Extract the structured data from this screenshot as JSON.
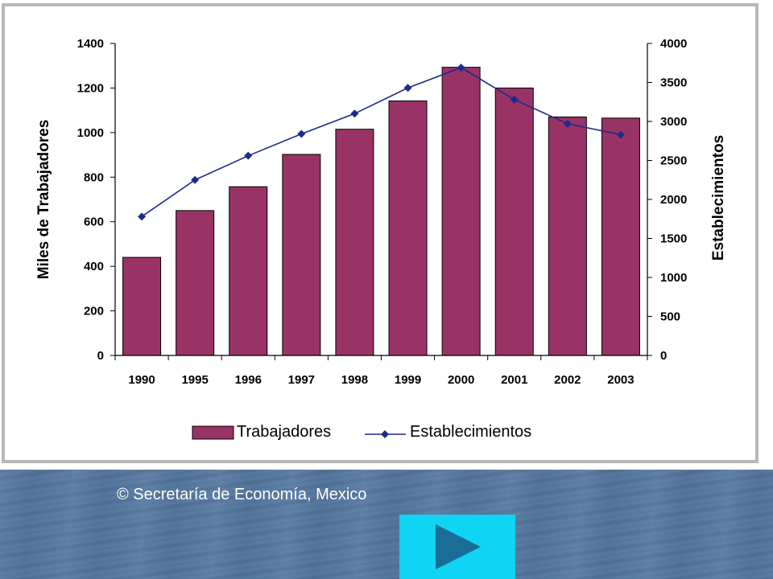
{
  "chart_data": {
    "type": "bar+line",
    "categories": [
      "1990",
      "1995",
      "1996",
      "1997",
      "1998",
      "1999",
      "2000",
      "2001",
      "2002",
      "2003"
    ],
    "series": [
      {
        "name": "Trabajadores",
        "type": "bar",
        "axis": "left",
        "values": [
          440,
          650,
          757,
          902,
          1015,
          1142,
          1293,
          1200,
          1070,
          1065
        ]
      },
      {
        "name": "Establecimientos",
        "type": "line",
        "axis": "right",
        "values": [
          1780,
          2250,
          2560,
          2840,
          3100,
          3430,
          3690,
          3280,
          2970,
          2830
        ]
      }
    ],
    "ylabel_left": "Miles de Trabajadores",
    "ylabel_right": "Establecimientos",
    "ylim_left": [
      0,
      1400
    ],
    "ylim_right": [
      0,
      4000
    ],
    "yticks_left": [
      "0",
      "200",
      "400",
      "600",
      "800",
      "1000",
      "1200",
      "1400"
    ],
    "yticks_right": [
      "0",
      "500",
      "1000",
      "1500",
      "2000",
      "2500",
      "3000",
      "3500",
      "4000"
    ],
    "legend_position": "bottom",
    "grid": false,
    "colors": {
      "bar": "#993366",
      "line": "#1c2a8c",
      "frame": "#b8b8b8"
    }
  },
  "footer": {
    "copyright": "© Secretaría de Economía, Mexico",
    "next_icon": "play-triangle-icon",
    "next_color": "#10d4f4"
  }
}
